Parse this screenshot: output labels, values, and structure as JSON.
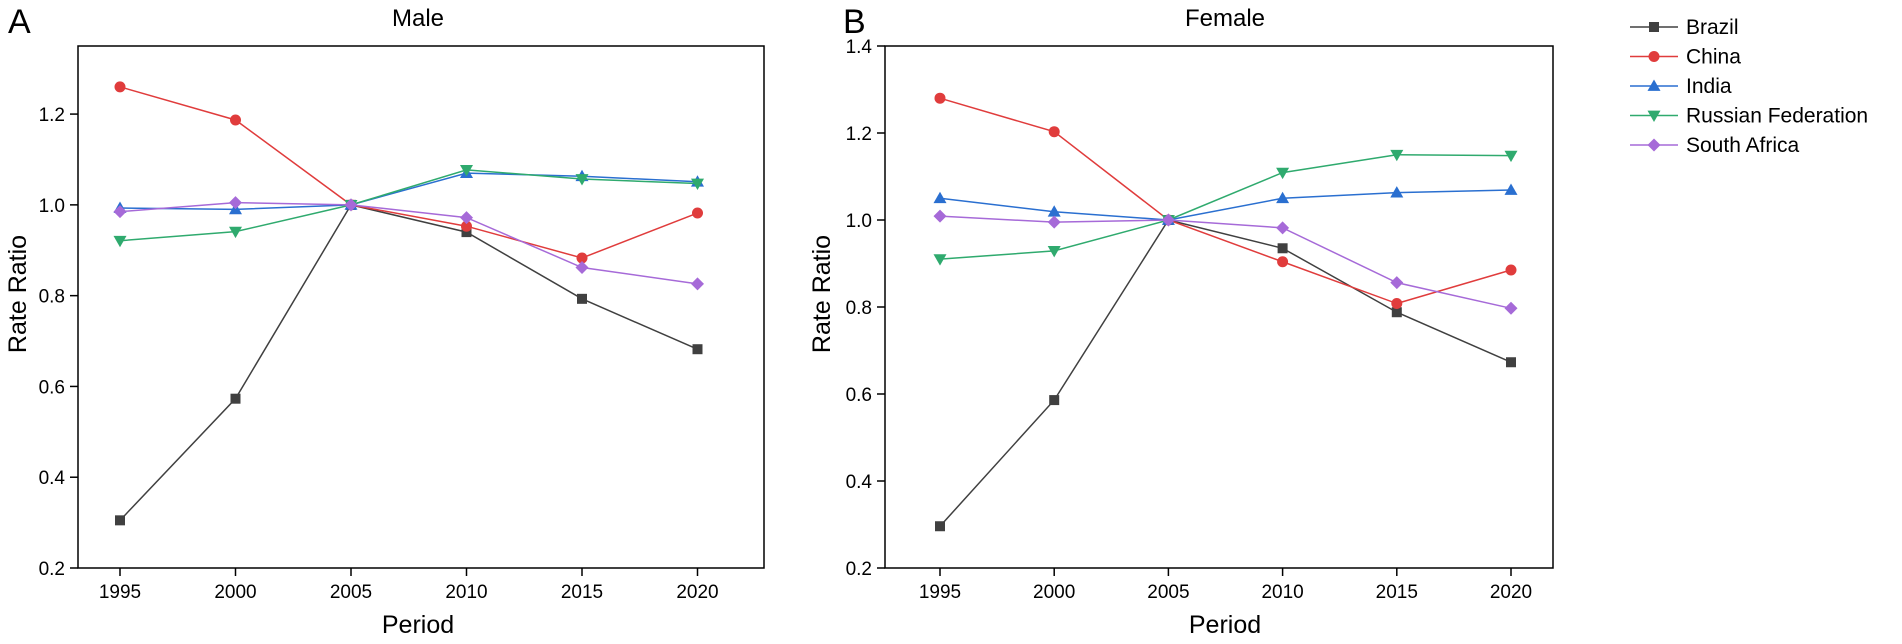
{
  "legend": [
    {
      "name": "Brazil",
      "color": "#404040",
      "marker": "square"
    },
    {
      "name": "China",
      "color": "#e03c3c",
      "marker": "circle"
    },
    {
      "name": "India",
      "color": "#2a6fd0",
      "marker": "triangle-up"
    },
    {
      "name": "Russian Federation",
      "color": "#2faa6e",
      "marker": "triangle-down"
    },
    {
      "name": "South Africa",
      "color": "#a66ad8",
      "marker": "diamond"
    }
  ],
  "chart_data": [
    {
      "type": "line",
      "panel_letter": "A",
      "title": "Male",
      "xlabel": "Period",
      "ylabel": "Rate Ratio",
      "x": [
        1995,
        2000,
        2005,
        2010,
        2015,
        2020
      ],
      "xticks": [
        "1995",
        "2000",
        "2005",
        "2010",
        "2015",
        "2020"
      ],
      "ylim": [
        0.2,
        1.35
      ],
      "yticks": [
        "0.2",
        "0.4",
        "0.6",
        "0.8",
        "1.0",
        "1.2"
      ],
      "series": [
        {
          "name": "Brazil",
          "values": [
            0.305,
            0.573,
            1.0,
            0.94,
            0.793,
            0.682
          ]
        },
        {
          "name": "China",
          "values": [
            1.26,
            1.187,
            1.0,
            0.953,
            0.883,
            0.982
          ]
        },
        {
          "name": "India",
          "values": [
            0.993,
            0.99,
            1.0,
            1.07,
            1.063,
            1.051
          ]
        },
        {
          "name": "Russian Federation",
          "values": [
            0.921,
            0.941,
            1.0,
            1.077,
            1.057,
            1.047
          ]
        },
        {
          "name": "South Africa",
          "values": [
            0.985,
            1.005,
            1.0,
            0.972,
            0.862,
            0.826
          ]
        }
      ]
    },
    {
      "type": "line",
      "panel_letter": "B",
      "title": "Female",
      "xlabel": "Period",
      "ylabel": "Rate Ratio",
      "x": [
        1995,
        2000,
        2005,
        2010,
        2015,
        2020
      ],
      "xticks": [
        "1995",
        "2000",
        "2005",
        "2010",
        "2015",
        "2020"
      ],
      "ylim": [
        0.2,
        1.4
      ],
      "yticks": [
        "0.2",
        "0.4",
        "0.6",
        "0.8",
        "1.0",
        "1.2",
        "1.4"
      ],
      "series": [
        {
          "name": "Brazil",
          "values": [
            0.296,
            0.586,
            1.0,
            0.935,
            0.788,
            0.673
          ]
        },
        {
          "name": "China",
          "values": [
            1.28,
            1.203,
            1.0,
            0.904,
            0.808,
            0.885
          ]
        },
        {
          "name": "India",
          "values": [
            1.05,
            1.019,
            1.0,
            1.05,
            1.063,
            1.069
          ]
        },
        {
          "name": "Russian Federation",
          "values": [
            0.91,
            0.929,
            1.0,
            1.109,
            1.15,
            1.148
          ]
        },
        {
          "name": "South Africa",
          "values": [
            1.009,
            0.995,
            1.0,
            0.982,
            0.856,
            0.797
          ]
        }
      ]
    }
  ]
}
